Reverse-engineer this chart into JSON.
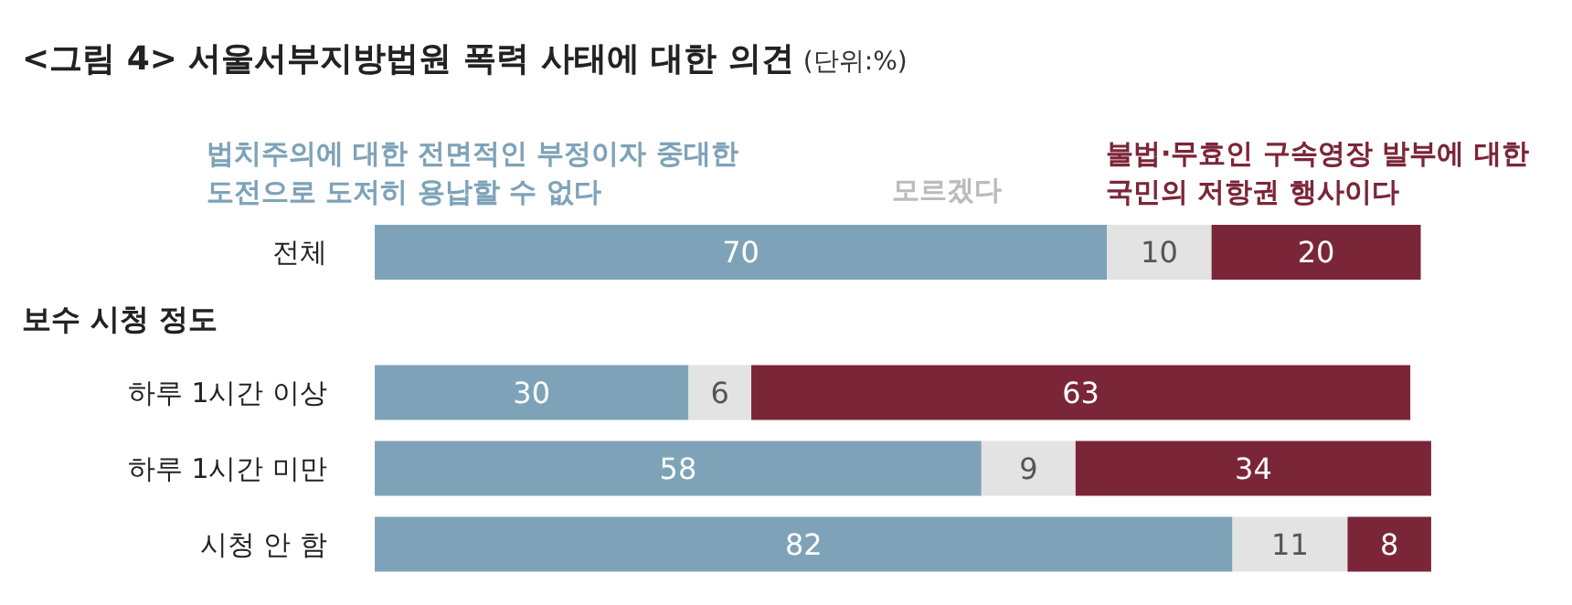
{
  "chart_data": {
    "type": "bar",
    "orientation": "horizontal",
    "stacked": true,
    "title": "<그림 4> 서울서부지방법원 폭력 사태에 대한 의견",
    "subtitle": "(단위:%)",
    "categories": [
      "전체",
      "하루 1시간 이상",
      "하루 1시간 미만",
      "시청 안 함"
    ],
    "series": [
      {
        "name": "법치주의에 대한 전면적인 부정이자 중대한 도전으로 도저히 용납할 수 없다",
        "color": "#7ea3b8",
        "values": [
          70,
          30,
          58,
          82
        ]
      },
      {
        "name": "모르겠다",
        "color": "#e3e3e3",
        "values": [
          10,
          6,
          9,
          11
        ]
      },
      {
        "name": "불법·무효인 구속영장 발부에 대한 국민의 저항권 행사이다",
        "color": "#7b2638",
        "values": [
          20,
          63,
          34,
          8
        ]
      }
    ],
    "annotations": [
      "보수 시청 정도"
    ],
    "xlim": [
      0,
      101
    ],
    "data_labels": true,
    "legend": "top",
    "tick_labels": "y"
  }
}
